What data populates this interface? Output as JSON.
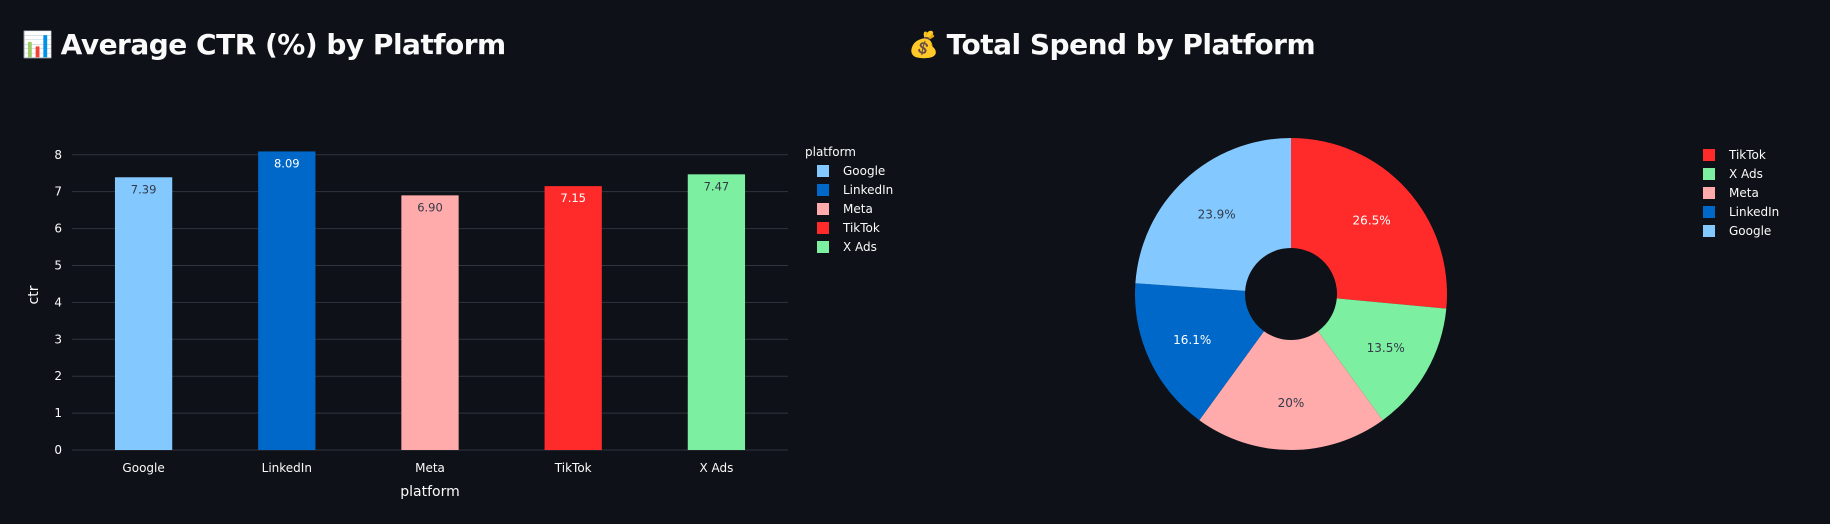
{
  "titles": {
    "left": {
      "icon": "bar-chart-icon",
      "icon_glyph": "📊",
      "text": "Average CTR (%) by Platform"
    },
    "right": {
      "icon": "money-bag-icon",
      "icon_glyph": "💰",
      "text": "Total Spend by Platform"
    }
  },
  "colors": {
    "background": "#0e1117",
    "grid": "#31333f",
    "text": "#fafafa",
    "Google": "#83c9ff",
    "LinkedIn": "#0068c9",
    "Meta": "#ffabab",
    "TikTok": "#ff2b2b",
    "X Ads": "#7defa1"
  },
  "chart_data": [
    {
      "type": "bar",
      "xlabel": "platform",
      "ylabel": "ctr",
      "categories": [
        "Google",
        "LinkedIn",
        "Meta",
        "TikTok",
        "X Ads"
      ],
      "values": [
        7.39,
        8.09,
        6.9,
        7.15,
        7.47
      ],
      "value_labels": [
        "7.39",
        "8.09",
        "6.90",
        "7.15",
        "7.47"
      ],
      "ylim": [
        0,
        8.4
      ],
      "yticks": [
        0,
        1,
        2,
        3,
        4,
        5,
        6,
        7,
        8
      ],
      "grid": true,
      "legend": {
        "title": "platform",
        "placement": "right",
        "entries": [
          "Google",
          "LinkedIn",
          "Meta",
          "TikTok",
          "X Ads"
        ]
      }
    },
    {
      "type": "pie",
      "hole": true,
      "slices": [
        {
          "label": "TikTok",
          "percent": 26.5,
          "text": "26.5%"
        },
        {
          "label": "X Ads",
          "percent": 13.5,
          "text": "13.5%"
        },
        {
          "label": "Meta",
          "percent": 20,
          "text": "20%"
        },
        {
          "label": "LinkedIn",
          "percent": 16.1,
          "text": "16.1%"
        },
        {
          "label": "Google",
          "percent": 23.9,
          "text": "23.9%"
        }
      ],
      "legend": {
        "placement": "right",
        "entries": [
          "TikTok",
          "X Ads",
          "Meta",
          "LinkedIn",
          "Google"
        ]
      }
    }
  ]
}
